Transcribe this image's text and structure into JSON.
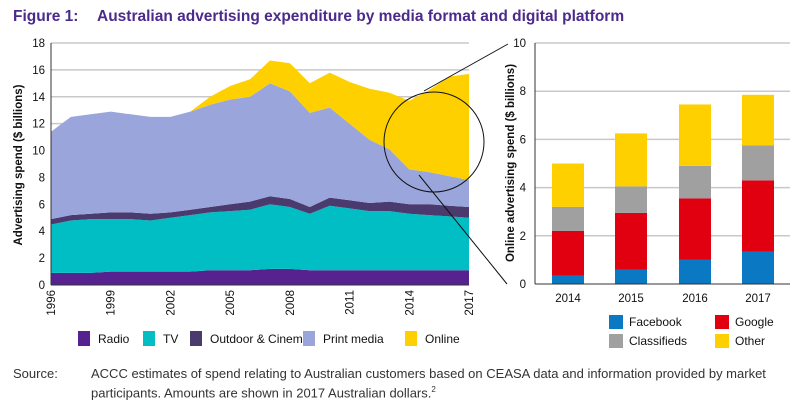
{
  "figure": {
    "label": "Figure 1:",
    "title": "Australian advertising expenditure by media format and digital platform"
  },
  "colors": {
    "Radio": "#55228f",
    "TV": "#00bec4",
    "Outdoor & Cinema": "#4a3a6e",
    "Print media": "#9aa6db",
    "Online": "#fed000",
    "Facebook": "#0a78c2",
    "Google": "#e10010",
    "Classifieds": "#a0a0a0",
    "Other": "#fed000"
  },
  "chart_data": [
    {
      "type": "area",
      "stacked": true,
      "title": "",
      "xlabel": "",
      "ylabel": "Advertising spend ($ billions)",
      "ylim": [
        0,
        18
      ],
      "yticks": [
        0,
        2,
        4,
        6,
        8,
        10,
        12,
        14,
        16,
        18
      ],
      "xtick_labels": [
        "1996",
        "1999",
        "2002",
        "2005",
        "2008",
        "2011",
        "2014",
        "2017"
      ],
      "grid": true,
      "legend_position": "bottom",
      "x": [
        1996,
        1997,
        1998,
        1999,
        2000,
        2001,
        2002,
        2003,
        2004,
        2005,
        2006,
        2007,
        2008,
        2009,
        2010,
        2011,
        2012,
        2013,
        2014,
        2015,
        2016,
        2017
      ],
      "series": [
        {
          "name": "Radio",
          "values": [
            0.9,
            0.9,
            0.9,
            1.0,
            1.0,
            1.0,
            1.0,
            1.0,
            1.1,
            1.1,
            1.1,
            1.2,
            1.2,
            1.1,
            1.1,
            1.1,
            1.1,
            1.1,
            1.1,
            1.1,
            1.1,
            1.1
          ]
        },
        {
          "name": "TV",
          "values": [
            3.6,
            3.9,
            4.0,
            3.9,
            3.9,
            3.8,
            4.0,
            4.2,
            4.3,
            4.4,
            4.5,
            4.8,
            4.6,
            4.2,
            4.8,
            4.6,
            4.4,
            4.4,
            4.2,
            4.1,
            4.0,
            3.9
          ]
        },
        {
          "name": "Outdoor & Cinema",
          "values": [
            0.4,
            0.4,
            0.4,
            0.5,
            0.5,
            0.5,
            0.4,
            0.4,
            0.4,
            0.5,
            0.6,
            0.6,
            0.6,
            0.5,
            0.6,
            0.6,
            0.6,
            0.7,
            0.7,
            0.8,
            0.8,
            0.8
          ]
        },
        {
          "name": "Print media",
          "values": [
            6.5,
            7.3,
            7.4,
            7.5,
            7.3,
            7.2,
            7.1,
            7.3,
            7.6,
            7.8,
            7.8,
            8.4,
            8.0,
            7.0,
            6.7,
            5.7,
            4.7,
            3.9,
            2.6,
            2.4,
            2.2,
            2.0
          ]
        },
        {
          "name": "Online",
          "values": [
            0,
            0,
            0,
            0,
            0,
            0,
            0,
            0,
            0.6,
            1.0,
            1.3,
            1.7,
            2.1,
            2.2,
            2.6,
            3.1,
            3.8,
            4.2,
            5.1,
            6.1,
            7.4,
            7.9
          ]
        }
      ],
      "annotation": "circle highlighting Online 2014–2017, linked to right-hand chart"
    },
    {
      "type": "bar",
      "stacked": true,
      "title": "",
      "xlabel": "",
      "ylabel": "Online advertising spend ($ billions)",
      "ylim": [
        0,
        10
      ],
      "yticks": [
        0,
        2,
        4,
        6,
        8,
        10
      ],
      "grid": true,
      "legend_position": "bottom",
      "categories": [
        "2014",
        "2015",
        "2016",
        "2017"
      ],
      "series": [
        {
          "name": "Facebook",
          "values": [
            0.35,
            0.6,
            1.0,
            1.35
          ]
        },
        {
          "name": "Google",
          "values": [
            1.85,
            2.35,
            2.55,
            2.95
          ]
        },
        {
          "name": "Classifieds",
          "values": [
            1.0,
            1.1,
            1.35,
            1.45
          ]
        },
        {
          "name": "Other",
          "values": [
            1.8,
            2.2,
            2.55,
            2.1
          ]
        }
      ]
    }
  ],
  "left_legend": [
    "Radio",
    "TV",
    "Outdoor & Cinema",
    "Print media",
    "Online"
  ],
  "right_legend": [
    [
      "Facebook",
      "Google"
    ],
    [
      "Classifieds",
      "Other"
    ]
  ],
  "source": {
    "label": "Source:",
    "text": "ACCC estimates of spend relating to Australian customers based on CEASA data and information provided by market participants. Amounts are shown in 2017 Australian dollars.",
    "footnote": "2"
  }
}
